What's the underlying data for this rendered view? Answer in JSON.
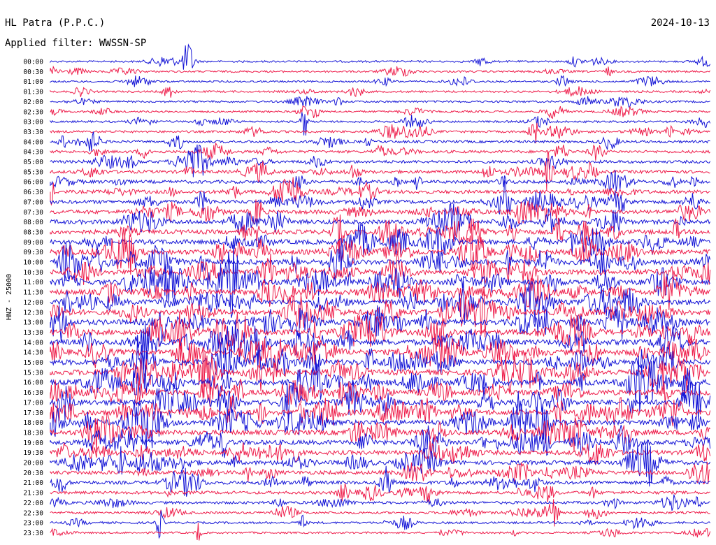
{
  "header": {
    "station": "HL Patra (P.P.C.)",
    "date": "2024-10-13",
    "filter": "Applied filter: WWSSN-SP"
  },
  "chart_data": {
    "type": "line",
    "subtype": "helicorder",
    "channel_label": "HNZ - 25000",
    "row_labels": [
      "00:00",
      "00:30",
      "01:00",
      "01:30",
      "02:00",
      "02:30",
      "03:00",
      "03:30",
      "04:00",
      "04:30",
      "05:00",
      "05:30",
      "06:00",
      "06:30",
      "07:00",
      "07:30",
      "08:00",
      "08:30",
      "09:00",
      "09:30",
      "10:00",
      "10:30",
      "11:00",
      "11:30",
      "12:00",
      "12:30",
      "13:00",
      "13:30",
      "14:00",
      "14:30",
      "15:00",
      "15:30",
      "16:00",
      "16:30",
      "17:00",
      "17:30",
      "18:00",
      "18:30",
      "19:00",
      "19:30",
      "20:00",
      "20:30",
      "21:00",
      "21:30",
      "22:00",
      "22:30",
      "23:00",
      "23:30"
    ],
    "trace_colors": [
      "#1414d6",
      "#ee1c4a"
    ],
    "noise_level": [
      0.1,
      0.12,
      0.1,
      0.12,
      0.13,
      0.12,
      0.13,
      0.18,
      0.24,
      0.28,
      0.32,
      0.38,
      0.4,
      0.44,
      0.48,
      0.55,
      0.62,
      0.66,
      0.72,
      0.76,
      0.8,
      0.8,
      0.82,
      0.84,
      0.86,
      0.86,
      0.88,
      0.88,
      0.9,
      0.9,
      0.9,
      0.9,
      0.9,
      0.88,
      0.86,
      0.84,
      0.8,
      0.76,
      0.72,
      0.66,
      0.6,
      0.52,
      0.44,
      0.36,
      0.28,
      0.2,
      0.16,
      0.12
    ]
  }
}
